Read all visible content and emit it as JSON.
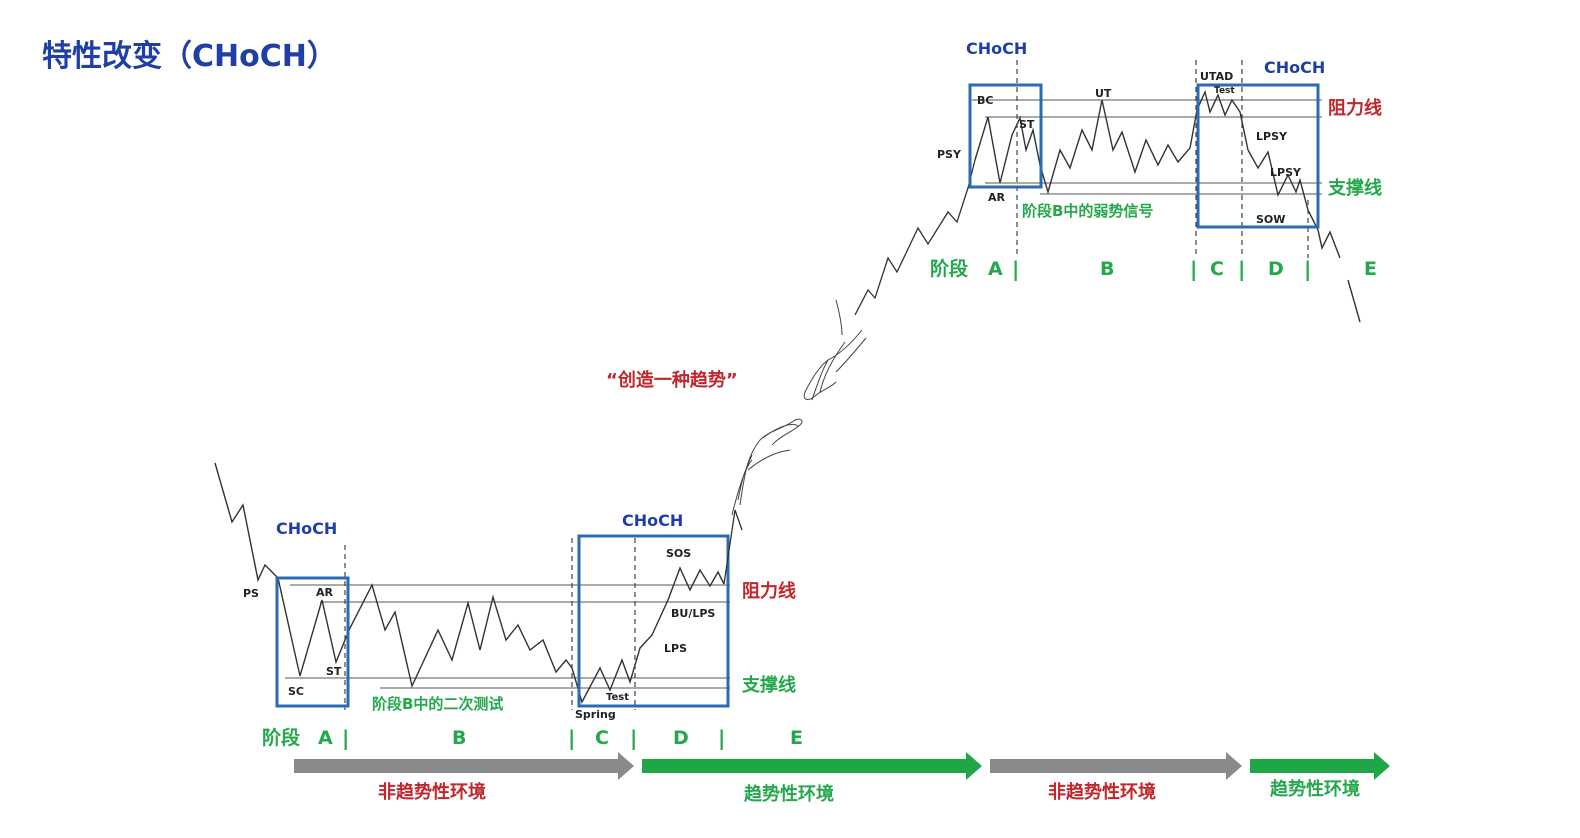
{
  "title": "特性改变（CHoCH）",
  "colors": {
    "blue": "#1f3fa6",
    "box": "#2b6bb0",
    "red": "#c0262c",
    "green": "#24a84b",
    "gray": "#8a8a8a",
    "arrow_green": "#1fa646"
  },
  "choch_label": "CHoCH",
  "resistance_label": "阻力线",
  "support_label": "支撑线",
  "quote": "“创造一种趋势”",
  "accumulation": {
    "events": {
      "ps": "PS",
      "sc": "SC",
      "ar": "AR",
      "st": "ST",
      "spring": "Spring",
      "test": "Test",
      "sos": "SOS",
      "bu_lps": "BU/LPS",
      "lps": "LPS"
    },
    "phase_b_note": "阶段B中的二次测试",
    "phase_word": "阶段",
    "phases": [
      "A",
      "B",
      "C",
      "D",
      "E"
    ]
  },
  "distribution": {
    "events": {
      "psy": "PSY",
      "bc": "BC",
      "ar": "AR",
      "st": "ST",
      "ut": "UT",
      "utad": "UTAD",
      "test": "Test",
      "lpsy1": "LPSY",
      "lpsy2": "LPSY",
      "sow": "SOW"
    },
    "phase_b_note": "阶段B中的弱势信号",
    "phase_word": "阶段",
    "phases": [
      "A",
      "B",
      "C",
      "D",
      "E"
    ]
  },
  "arrows": [
    "非趋势性环境",
    "趋势性环境",
    "非趋势性环境",
    "趋势性环境"
  ]
}
